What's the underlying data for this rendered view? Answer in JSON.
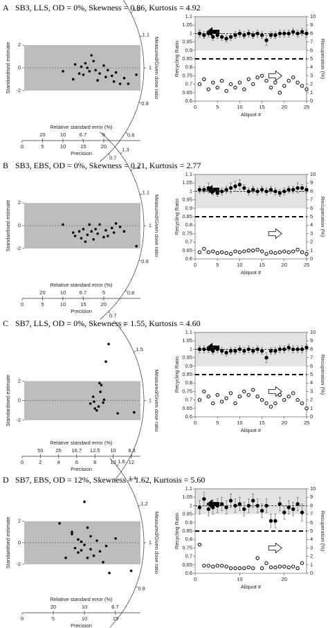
{
  "panels": [
    {
      "label": "A",
      "title": "SB3, LLS, OD = 0%, Skewness = 0.86, Kurtosis = 4.92"
    },
    {
      "label": "B",
      "title": "SB3, EBS, OD = 0%, Skewness = 0.21, Kurtosis = 2.77"
    },
    {
      "label": "C",
      "title": "SB7, LLS, OD = 0%, Skewness = 1.55, Kurtosis = 4.60"
    },
    {
      "label": "D",
      "title": "SB7, EBS, OD = 12%, Skewness = 1.62, Kurtosis = 5.60"
    }
  ],
  "chart_data": [
    {
      "type": "radial",
      "ylabel": "Standardised estimate",
      "zlabel": "Measured/Given dose ratio",
      "xlabel": "Precision",
      "x2label": "Relative standard error (%)",
      "x": [
        10,
        12.5,
        13,
        14,
        14.5,
        15,
        15.5,
        16,
        16.5,
        17,
        17.5,
        18,
        18.5,
        19,
        20,
        20.5,
        21,
        22,
        22.5,
        23,
        24,
        25,
        26,
        28
      ],
      "values": [
        -0.3,
        -1,
        0.3,
        -0.5,
        0.1,
        -0.6,
        0.4,
        0,
        -0.3,
        1.1,
        0.6,
        -0.2,
        -1.1,
        -0.5,
        0.2,
        -0.8,
        -0.2,
        -0.7,
        -1.2,
        -0.4,
        -1.4,
        -0.9,
        -1.4,
        -0.6
      ],
      "xlim": [
        0,
        29
      ],
      "xticks": [
        0,
        5,
        10,
        15,
        20
      ],
      "x2ticks": [
        20,
        10,
        6.7,
        5
      ],
      "ylim": [
        -4.5,
        4.5
      ],
      "yticks": [
        -2,
        0,
        2
      ],
      "band": [
        -2,
        2
      ],
      "zticks": [
        1.3,
        1.2,
        1.1,
        1,
        0.9,
        0.8,
        0.7
      ]
    },
    {
      "type": "recycling",
      "ylabel": "Recycling Ratio",
      "y2label": "Recuperation (%)",
      "xlabel": "Aliquot #",
      "x": [
        1,
        2,
        3,
        4,
        5,
        6,
        7,
        8,
        9,
        10,
        11,
        12,
        13,
        14,
        15,
        16,
        17,
        18,
        19,
        20,
        21,
        22,
        23,
        24,
        25
      ],
      "series": [
        {
          "color": "#000000",
          "values": [
            1.0,
            0.99,
            1.0,
            0.98,
            0.99,
            0.98,
            0.97,
            0.98,
            0.99,
            1.0,
            0.99,
            1.0,
            0.99,
            1.0,
            0.99,
            0.96,
            0.99,
            0.99,
            1.0,
            1.0,
            1.0,
            1.01,
            1.0,
            1.01,
            1.0
          ],
          "errors": [
            0.02,
            0.02,
            0.02,
            0.02,
            0.02,
            0.02,
            0.02,
            0.02,
            0.02,
            0.02,
            0.02,
            0.02,
            0.02,
            0.02,
            0.02,
            0.03,
            0.02,
            0.02,
            0.02,
            0.02,
            0.02,
            0.02,
            0.02,
            0.02,
            0.02
          ]
        },
        {
          "color": "#ffffff",
          "axis": "y2",
          "values": [
            2,
            2.6,
            1.4,
            2.2,
            1.6,
            2.4,
            1.2,
            2.0,
            1.6,
            2.2,
            1.4,
            2.6,
            2.0,
            2.8,
            3.0,
            2.4,
            1.6,
            2.2,
            1.0,
            1.8,
            2.4,
            2.8,
            2.2,
            1.8,
            1.4
          ]
        }
      ],
      "xlim": [
        0,
        25
      ],
      "xticks": [
        0,
        5,
        10,
        15,
        20,
        25
      ],
      "ylim": [
        0.6,
        1.1
      ],
      "yticks": [
        0.6,
        0.65,
        0.7,
        0.75,
        0.8,
        0.85,
        0.9,
        0.95,
        1,
        1.05,
        1.1
      ],
      "y2lim": [
        0,
        10
      ],
      "y2ticks": [
        0,
        1,
        2,
        3,
        4,
        5,
        6,
        7,
        8,
        9,
        10
      ],
      "band": [
        0.9,
        1.1
      ],
      "ref_lines": [
        1,
        0.85
      ]
    },
    {
      "type": "radial",
      "ylabel": "Standardised estimate",
      "zlabel": "Measured/Given dose ratio",
      "xlabel": "Precision",
      "x2label": "Relative standard error (%)",
      "x": [
        10,
        12.5,
        13,
        14,
        14.5,
        15,
        15.5,
        16,
        16.5,
        17,
        17.5,
        18,
        18.5,
        19,
        20,
        20.5,
        21,
        22,
        22.5,
        23,
        24,
        25,
        28
      ],
      "values": [
        0.1,
        -0.6,
        -0.9,
        -0.5,
        -1.1,
        -0.3,
        -1.4,
        -0.8,
        0.1,
        -0.5,
        -1.2,
        -0.3,
        -0.7,
        0.1,
        -1.0,
        -0.4,
        -0.9,
        -0.2,
        -0.6,
        0.2,
        -0.1,
        -0.5,
        -1.8
      ],
      "xlim": [
        0,
        29
      ],
      "xticks": [
        0,
        5,
        10,
        15,
        20
      ],
      "x2ticks": [
        20,
        10,
        6.7,
        5
      ],
      "ylim": [
        -4.5,
        4.5
      ],
      "yticks": [
        -2,
        0,
        2
      ],
      "band": [
        -2,
        2
      ],
      "zticks": [
        1.3,
        1.2,
        1.1,
        1,
        0.9,
        0.8,
        0.7
      ]
    },
    {
      "type": "recycling",
      "ylabel": "Recycling Ratio",
      "y2label": "Recuperation (%)",
      "xlabel": "Aliquot #",
      "x": [
        1,
        2,
        3,
        4,
        5,
        6,
        7,
        8,
        9,
        10,
        11,
        12,
        13,
        14,
        15,
        16,
        17,
        18,
        19,
        20,
        21,
        22,
        23,
        24,
        25
      ],
      "series": [
        {
          "color": "#000000",
          "values": [
            1.01,
            1.01,
            1.02,
            1.0,
            0.99,
            1.0,
            1.01,
            1.02,
            1.03,
            1.04,
            1.02,
            1.0,
            1.01,
            1.0,
            1.01,
            1.0,
            1.01,
            1.0,
            0.99,
            1.0,
            1.01,
            1.01,
            1.02,
            1.02,
            1.01
          ],
          "errors": [
            0.02,
            0.02,
            0.03,
            0.02,
            0.02,
            0.02,
            0.02,
            0.03,
            0.03,
            0.03,
            0.02,
            0.02,
            0.02,
            0.02,
            0.02,
            0.02,
            0.02,
            0.02,
            0.02,
            0.02,
            0.02,
            0.02,
            0.03,
            0.02,
            0.02
          ]
        },
        {
          "color": "#ffffff",
          "axis": "y2",
          "values": [
            0.8,
            1.2,
            0.8,
            0.9,
            0.7,
            0.8,
            0.7,
            0.6,
            0.9,
            0.8,
            0.9,
            1.0,
            1.0,
            1.1,
            0.9,
            0.6,
            0.8,
            0.7,
            0.8,
            0.9,
            0.8,
            0.9,
            1.1,
            0.8,
            0.6
          ]
        }
      ],
      "xlim": [
        0,
        25
      ],
      "xticks": [
        0,
        5,
        10,
        15,
        20,
        25
      ],
      "ylim": [
        0.6,
        1.1
      ],
      "yticks": [
        0.6,
        0.65,
        0.7,
        0.75,
        0.8,
        0.85,
        0.9,
        0.95,
        1,
        1.05,
        1.1
      ],
      "y2lim": [
        0,
        10
      ],
      "y2ticks": [
        0,
        1,
        2,
        3,
        4,
        5,
        6,
        7,
        8,
        9,
        10
      ],
      "band": [
        0.9,
        1.1
      ],
      "ref_lines": [
        1,
        0.85
      ]
    },
    {
      "type": "radial",
      "ylabel": "Standardised estimate",
      "zlabel": "Measured/Given dose ratio",
      "xlabel": "Precision",
      "x2label": "Relative standard error (%)",
      "x": [
        7.5,
        7.8,
        8,
        8.2,
        8.4,
        8.5,
        8.7,
        8.9,
        9,
        9.2,
        9.5,
        10.5,
        12.3,
        8.6,
        7.9
      ],
      "values": [
        -0.3,
        0.4,
        -0.8,
        -1.0,
        -0.6,
        1.8,
        1.6,
        -0.2,
        0.1,
        4.0,
        5.8,
        -1.3,
        -1.2,
        0.9,
        -0.1
      ],
      "xlim": [
        0,
        13
      ],
      "xticks": [
        0,
        2,
        4,
        6,
        8,
        10,
        12
      ],
      "x2ticks": [
        50,
        25,
        16.7,
        12.5,
        10,
        8.3
      ],
      "ylim": [
        -3.5,
        7
      ],
      "yticks": [
        -2,
        0,
        2
      ],
      "band": [
        -2,
        2
      ],
      "zticks": [
        2,
        1.5,
        1
      ]
    },
    {
      "type": "recycling",
      "ylabel": "Recycling Ratio",
      "y2label": "Recuperation (%)",
      "xlabel": "Aliquot #",
      "x": [
        1,
        2,
        3,
        4,
        5,
        6,
        7,
        8,
        9,
        10,
        11,
        12,
        13,
        14,
        15,
        16,
        17,
        18,
        19,
        20,
        21,
        22,
        23,
        24,
        25
      ],
      "series": [
        {
          "color": "#000000",
          "values": [
            1.0,
            1.0,
            1.0,
            0.99,
            1.0,
            0.99,
            0.98,
            0.99,
            0.99,
            1.0,
            0.99,
            1.0,
            0.99,
            1.0,
            0.99,
            0.95,
            0.99,
            0.99,
            1.0,
            1.0,
            1.01,
            1.0,
            1.0,
            1.0,
            1.01
          ],
          "errors": [
            0.02,
            0.02,
            0.02,
            0.02,
            0.02,
            0.02,
            0.02,
            0.02,
            0.02,
            0.02,
            0.02,
            0.02,
            0.02,
            0.02,
            0.02,
            0.03,
            0.02,
            0.02,
            0.02,
            0.02,
            0.02,
            0.02,
            0.02,
            0.02,
            0.02
          ]
        },
        {
          "color": "#ffffff",
          "axis": "y2",
          "values": [
            2.0,
            3.0,
            2.4,
            1.6,
            2.6,
            1.8,
            2.2,
            2.8,
            1.6,
            2.4,
            3.0,
            2.6,
            3.2,
            2.4,
            2.0,
            1.6,
            1.2,
            1.6,
            2.6,
            2.0,
            2.4,
            2.8,
            2.0,
            1.6,
            1.0
          ]
        }
      ],
      "xlim": [
        0,
        25
      ],
      "xticks": [
        0,
        5,
        10,
        15,
        20,
        25
      ],
      "ylim": [
        0.6,
        1.1
      ],
      "yticks": [
        0.6,
        0.65,
        0.7,
        0.75,
        0.8,
        0.85,
        0.9,
        0.95,
        1,
        1.05,
        1.1
      ],
      "y2lim": [
        0,
        10
      ],
      "y2ticks": [
        0,
        1,
        2,
        3,
        4,
        5,
        6,
        7,
        8,
        9,
        10
      ],
      "band": [
        0.9,
        1.1
      ],
      "ref_lines": [
        1,
        0.85
      ]
    },
    {
      "type": "radial",
      "ylabel": "Standardised estimate",
      "zlabel": "Measured/Given dose ratio",
      "xlabel": "Precision",
      "x2label": "Relative standard error (%)",
      "x": [
        6,
        7,
        8,
        8.5,
        9,
        9,
        9.5,
        10,
        10,
        10.5,
        11,
        11,
        11.5,
        12,
        12.5,
        13,
        13.5,
        14,
        15,
        8,
        9.5,
        10.5,
        17.5
      ],
      "values": [
        1.8,
        -1.4,
        0.8,
        -0.5,
        0.3,
        -0.9,
        0.1,
        -0.2,
        3.8,
        1.4,
        -0.6,
        0.6,
        -1.2,
        0.2,
        -0.8,
        -1.8,
        -0.3,
        -2.8,
        0.4,
        1.0,
        -0.7,
        -1.4,
        -2.6
      ],
      "xlim": [
        0,
        19
      ],
      "xticks": [
        0,
        5,
        10,
        15
      ],
      "x2ticks": [
        20,
        10,
        6.7
      ],
      "ylim": [
        -4.5,
        5
      ],
      "yticks": [
        -2,
        0,
        2
      ],
      "band": [
        -2,
        2
      ],
      "zticks": [
        1.6,
        1.4,
        1.2,
        1,
        0.8
      ]
    },
    {
      "type": "recycling",
      "ylabel": "Recycling Ratio",
      "y2label": "Recuperation (%)",
      "xlabel": "Aliquot #",
      "x": [
        1,
        2,
        3,
        4,
        5,
        6,
        7,
        8,
        9,
        10,
        11,
        12,
        13,
        14,
        15,
        16,
        17,
        18,
        19,
        20,
        21,
        22,
        23,
        24
      ],
      "series": [
        {
          "color": "#000000",
          "values": [
            0.99,
            1.04,
            0.98,
            0.99,
            1.0,
            1.01,
            0.99,
            1.03,
            1.0,
            1.01,
            0.98,
            1.0,
            1.03,
            1.0,
            0.97,
            1.0,
            0.91,
            0.91,
            1.01,
            0.96,
            0.99,
            0.98,
            1.01,
            0.96
          ],
          "errors": [
            0.04,
            0.04,
            0.04,
            0.04,
            0.04,
            0.04,
            0.04,
            0.04,
            0.04,
            0.04,
            0.04,
            0.04,
            0.04,
            0.04,
            0.04,
            0.04,
            0.04,
            0.04,
            0.04,
            0.04,
            0.04,
            0.04,
            0.04,
            0.05
          ]
        },
        {
          "color": "#ffffff",
          "axis": "y2",
          "values": [
            3.4,
            0.9,
            0.9,
            0.8,
            0.9,
            0.9,
            0.8,
            0.6,
            0.6,
            0.6,
            0.6,
            0.7,
            0.6,
            1.8,
            0.6,
            1.2,
            0.7,
            0.7,
            0.8,
            0.8,
            0.7,
            0.8,
            0.6,
            1.2
          ]
        }
      ],
      "xlim": [
        0,
        25
      ],
      "xticks": [
        0,
        10,
        20
      ],
      "ylim": [
        0.6,
        1.1
      ],
      "yticks": [
        0.6,
        0.65,
        0.7,
        0.75,
        0.8,
        0.85,
        0.9,
        0.95,
        1,
        1.05,
        1.1
      ],
      "y2lim": [
        0,
        10
      ],
      "y2ticks": [
        0,
        1,
        2,
        3,
        4,
        5,
        6,
        7,
        8,
        9,
        10
      ],
      "band": [
        0.95,
        1.1
      ],
      "ref_lines": [
        1,
        0.85
      ]
    }
  ]
}
